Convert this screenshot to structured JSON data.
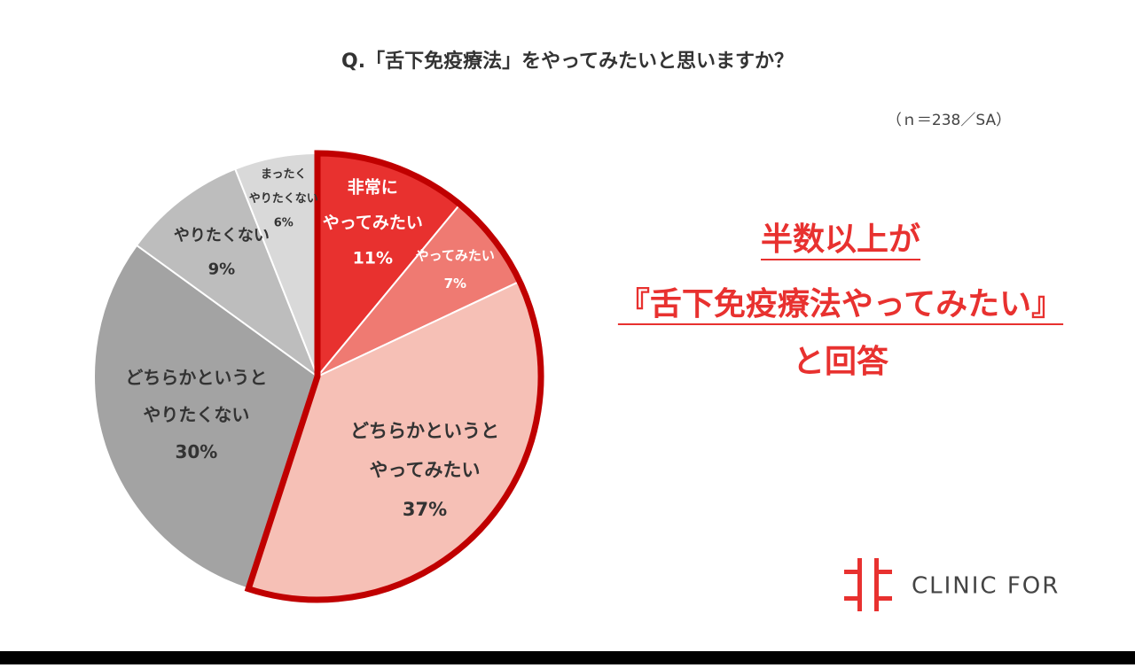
{
  "chart_data": {
    "type": "pie",
    "title": "Q.「舌下免疫療法」をやってみたいと思いますか？",
    "subtitle": "（ｎ＝238／SA）",
    "categories": [
      [
        "非常に",
        "やってみたい"
      ],
      [
        "やってみたい"
      ],
      [
        "どちらかというと",
        "やってみたい"
      ],
      [
        "どちらかというと",
        "やりたくない"
      ],
      [
        "やりたくない"
      ],
      [
        "まったく",
        "やりたくない"
      ]
    ],
    "values": [
      11,
      7,
      37,
      30,
      9,
      6
    ],
    "value_labels": [
      "11%",
      "7%",
      "37%",
      "30%",
      "9%",
      "6%"
    ],
    "colors": [
      "#e8312f",
      "#ef7a72",
      "#f6c0b6",
      "#a3a3a3",
      "#bdbdbd",
      "#d9d9d9"
    ],
    "annotation": [
      "半数以上が",
      "『舌下免疫療法やってみたい』",
      "と回答"
    ],
    "logo": "CLINIC FOR"
  }
}
